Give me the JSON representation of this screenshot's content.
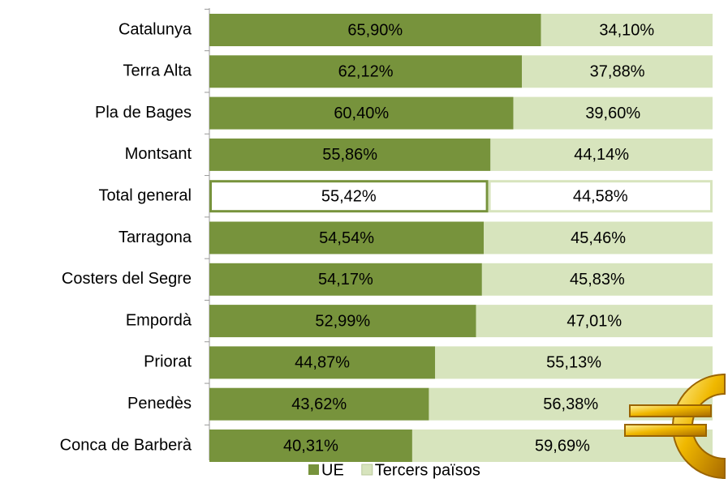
{
  "chart_data": {
    "type": "bar",
    "orientation": "horizontal",
    "stacked": true,
    "categories": [
      "Catalunya",
      "Terra Alta",
      "Pla de Bages",
      "Montsant",
      "Total general",
      "Tarragona",
      "Costers del Segre",
      "Empordà",
      "Priorat",
      "Penedès",
      "Conca de Barberà"
    ],
    "series": [
      {
        "name": "UE",
        "color": "#77933c",
        "values": [
          65.9,
          62.12,
          60.4,
          55.86,
          55.42,
          54.54,
          54.17,
          52.99,
          44.87,
          43.62,
          40.31
        ],
        "value_labels": [
          "65,90%",
          "62,12%",
          "60,40%",
          "55,86%",
          "55,42%",
          "54,54%",
          "54,17%",
          "52,99%",
          "44,87%",
          "43,62%",
          "40,31%"
        ]
      },
      {
        "name": "Tercers països",
        "color": "#d7e4bd",
        "values": [
          34.1,
          37.88,
          39.6,
          44.14,
          44.58,
          45.46,
          45.83,
          47.01,
          55.13,
          56.38,
          59.69
        ],
        "value_labels": [
          "34,10%",
          "37,88%",
          "39,60%",
          "44,14%",
          "44,58%",
          "45,46%",
          "45,83%",
          "47,01%",
          "55,13%",
          "56,38%",
          "59,69%"
        ]
      }
    ],
    "xlim": [
      0,
      100
    ],
    "highlight": 4,
    "legend": "bottom"
  }
}
